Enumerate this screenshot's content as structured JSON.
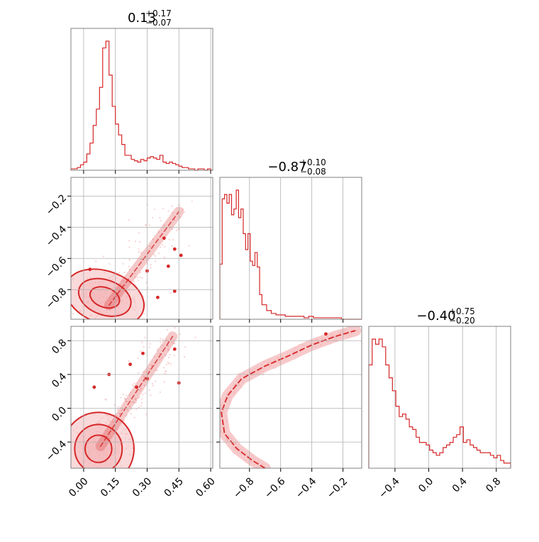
{
  "colors": {
    "series": "#d62728",
    "fill": "#f4b3b5",
    "points": "#f3b2b4",
    "grid": "#b0b0b0",
    "frame": "#808080"
  },
  "chart_data": [
    {
      "type": "histogram",
      "title_value": "0.13",
      "title_plus": "+0.17",
      "title_minus": "−0.07",
      "xlim": [
        -0.06,
        0.61
      ],
      "xticks": [
        0.0,
        0.15,
        0.3,
        0.45,
        0.6
      ],
      "bins": [
        -0.06,
        -0.045,
        -0.03,
        -0.015,
        0.0,
        0.015,
        0.03,
        0.045,
        0.06,
        0.075,
        0.09,
        0.105,
        0.12,
        0.135,
        0.15,
        0.165,
        0.18,
        0.195,
        0.21,
        0.225,
        0.24,
        0.255,
        0.27,
        0.285,
        0.3,
        0.315,
        0.33,
        0.345,
        0.36,
        0.375,
        0.39,
        0.405,
        0.42,
        0.435,
        0.45,
        0.465,
        0.48,
        0.495,
        0.51,
        0.525,
        0.54,
        0.555,
        0.57,
        0.585,
        0.6,
        0.61
      ],
      "counts": [
        1,
        1,
        2,
        4,
        6,
        12,
        20,
        33,
        45,
        61,
        90,
        95,
        70,
        47,
        34,
        26,
        19,
        11,
        11,
        8,
        7,
        6,
        8,
        7,
        9,
        10,
        9,
        8,
        11,
        6,
        5,
        6,
        5,
        4,
        3,
        2,
        2,
        1,
        1,
        0,
        1,
        1,
        0,
        1,
        0
      ]
    },
    {
      "type": "histogram",
      "title_value": "−0.87",
      "title_plus": "+0.10",
      "title_minus": "−0.08",
      "xlim": [
        -0.99,
        -0.08
      ],
      "xticks": [
        -0.8,
        -0.6,
        -0.4,
        -0.2
      ],
      "bins": [
        -0.99,
        -0.975,
        -0.96,
        -0.945,
        -0.93,
        -0.915,
        -0.9,
        -0.885,
        -0.87,
        -0.855,
        -0.84,
        -0.825,
        -0.81,
        -0.795,
        -0.78,
        -0.765,
        -0.75,
        -0.735,
        -0.72,
        -0.69,
        -0.66,
        -0.63,
        -0.6,
        -0.57,
        -0.54,
        -0.51,
        -0.48,
        -0.45,
        -0.42,
        -0.39,
        -0.36,
        -0.33,
        -0.3,
        -0.27,
        -0.24,
        -0.21,
        -0.18,
        -0.15,
        -0.12,
        -0.08
      ],
      "counts": [
        38,
        83,
        86,
        80,
        86,
        72,
        76,
        89,
        70,
        76,
        59,
        48,
        59,
        40,
        37,
        46,
        36,
        17,
        10,
        6,
        4,
        3,
        3,
        2,
        2,
        2,
        2,
        1,
        2,
        1,
        1,
        1,
        1,
        1,
        1,
        0,
        0,
        0,
        0
      ]
    },
    {
      "type": "histogram",
      "title_value": "−0.40",
      "title_plus": "+0.75",
      "title_minus": "−0.20",
      "xlim": [
        -0.71,
        0.97
      ],
      "xticks": [
        -0.4,
        0.0,
        0.4,
        0.8
      ],
      "bins": [
        -0.71,
        -0.67,
        -0.63,
        -0.59,
        -0.55,
        -0.51,
        -0.47,
        -0.43,
        -0.39,
        -0.35,
        -0.31,
        -0.27,
        -0.23,
        -0.19,
        -0.15,
        -0.11,
        -0.07,
        -0.03,
        0.01,
        0.05,
        0.09,
        0.13,
        0.17,
        0.21,
        0.25,
        0.29,
        0.33,
        0.37,
        0.41,
        0.45,
        0.49,
        0.53,
        0.57,
        0.61,
        0.65,
        0.69,
        0.73,
        0.77,
        0.81,
        0.85,
        0.89,
        0.93,
        0.97
      ],
      "counts": [
        80,
        100,
        96,
        100,
        94,
        80,
        70,
        60,
        48,
        40,
        42,
        38,
        32,
        30,
        24,
        20,
        20,
        18,
        14,
        12,
        10,
        12,
        16,
        18,
        20,
        24,
        26,
        32,
        20,
        22,
        18,
        16,
        14,
        12,
        12,
        12,
        10,
        8,
        10,
        6,
        4,
        4
      ]
    },
    {
      "type": "contour-scatter",
      "xlim": [
        -0.06,
        0.61
      ],
      "ylim": [
        -0.99,
        -0.08
      ],
      "yticks": [
        -0.8,
        -0.6,
        -0.4,
        -0.2
      ],
      "isolated_points": [
        [
          0.38,
          -0.47
        ],
        [
          0.43,
          -0.54
        ],
        [
          0.46,
          -0.58
        ],
        [
          0.4,
          -0.65
        ],
        [
          0.3,
          -0.68
        ],
        [
          0.43,
          -0.81
        ],
        [
          0.35,
          -0.85
        ],
        [
          0.03,
          -0.67
        ]
      ],
      "cluster": {
        "center": [
          0.1,
          -0.85
        ],
        "spread": [
          0.08,
          0.07
        ],
        "n": 240
      },
      "tail": {
        "from": [
          0.12,
          -0.9
        ],
        "to": [
          0.45,
          -0.3
        ],
        "n": 90
      }
    },
    {
      "type": "contour-scatter",
      "xlim": [
        -0.06,
        0.61
      ],
      "ylim": [
        -0.71,
        0.97
      ],
      "yticks": [
        -0.4,
        0.0,
        0.4,
        0.8
      ],
      "xticks": [
        0.0,
        0.15,
        0.3,
        0.45,
        0.6
      ],
      "isolated_points": [
        [
          0.22,
          0.52
        ],
        [
          0.3,
          0.35
        ],
        [
          0.12,
          0.4
        ],
        [
          0.05,
          0.25
        ],
        [
          0.45,
          0.3
        ],
        [
          0.43,
          0.7
        ],
        [
          0.28,
          0.65
        ],
        [
          0.25,
          0.25
        ]
      ],
      "cluster": {
        "center": [
          0.07,
          -0.48
        ],
        "spread": [
          0.07,
          0.18
        ],
        "n": 220
      },
      "tail": {
        "from": [
          0.08,
          -0.45
        ],
        "to": [
          0.42,
          0.85
        ],
        "n": 160
      }
    },
    {
      "type": "contour-scatter",
      "xlim": [
        -0.99,
        -0.08
      ],
      "ylim": [
        -0.71,
        0.97
      ],
      "yticks": [],
      "xticks": [
        -0.8,
        -0.6,
        -0.4,
        -0.2
      ],
      "isolated_points": [
        [
          -0.31,
          0.88
        ]
      ],
      "curve": [
        [
          -0.7,
          -0.71
        ],
        [
          -0.78,
          -0.62
        ],
        [
          -0.88,
          -0.48
        ],
        [
          -0.96,
          -0.3
        ],
        [
          -0.98,
          -0.05
        ],
        [
          -0.94,
          0.15
        ],
        [
          -0.85,
          0.35
        ],
        [
          -0.7,
          0.5
        ],
        [
          -0.55,
          0.62
        ],
        [
          -0.4,
          0.75
        ],
        [
          -0.25,
          0.85
        ],
        [
          -0.12,
          0.92
        ]
      ],
      "n": 260
    }
  ]
}
